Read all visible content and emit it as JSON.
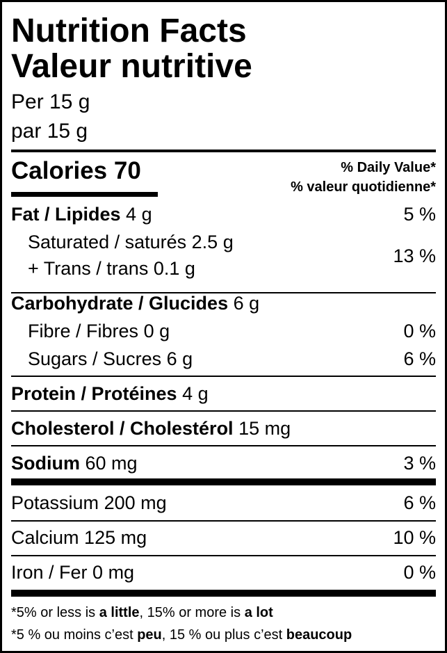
{
  "title_en": "Nutrition Facts",
  "title_fr": "Valeur nutritive",
  "serving_en": "Per 15 g",
  "serving_fr": "par 15 g",
  "calories": {
    "label": "Calories",
    "value": "70"
  },
  "dv_header_en": "% Daily Value*",
  "dv_header_fr": "% valeur quotidienne*",
  "nutrients": {
    "fat": {
      "label": "Fat / Lipides",
      "amount": "4 g",
      "dv": "5 %"
    },
    "saturated": {
      "label": "Saturated / saturés",
      "amount": "2.5 g"
    },
    "trans": {
      "label": "+ Trans / trans",
      "amount": "0.1 g"
    },
    "sat_trans_dv": "13 %",
    "carbohydrate": {
      "label": "Carbohydrate / Glucides",
      "amount": "6 g"
    },
    "fibre": {
      "label": "Fibre / Fibres",
      "amount": "0 g",
      "dv": "0 %"
    },
    "sugars": {
      "label": "Sugars / Sucres",
      "amount": "6 g",
      "dv": "6 %"
    },
    "protein": {
      "label": "Protein / Protéines",
      "amount": "4 g"
    },
    "cholesterol": {
      "label": "Cholesterol / Cholestérol",
      "amount": "15 mg"
    },
    "sodium": {
      "label": "Sodium",
      "amount": "60 mg",
      "dv": "3 %"
    },
    "potassium": {
      "label": "Potassium",
      "amount": "200 mg",
      "dv": "6 %"
    },
    "calcium": {
      "label": "Calcium",
      "amount": "125 mg",
      "dv": "10 %"
    },
    "iron": {
      "label": "Iron / Fer",
      "amount": "0 mg",
      "dv": "0 %"
    }
  },
  "footnote_en": {
    "a": "*5% or less is ",
    "b": "a little",
    "c": ", 15% or more is ",
    "d": "a lot"
  },
  "footnote_fr": {
    "a": "*5 % ou moins c’est ",
    "b": "peu",
    "c": ", 15 % ou plus c’est ",
    "d": "beaucoup"
  }
}
